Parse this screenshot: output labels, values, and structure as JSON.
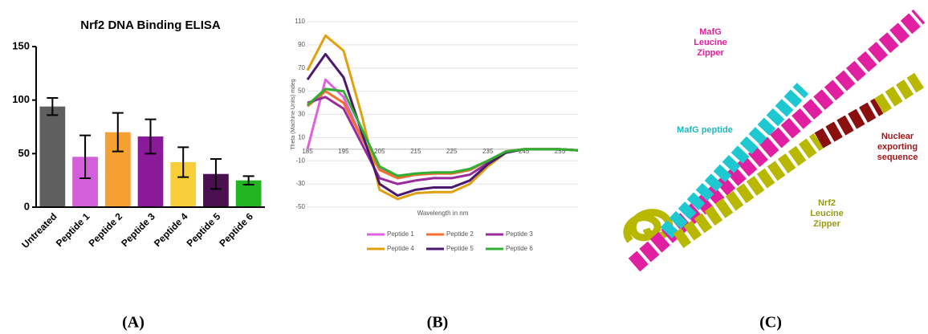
{
  "chart_data": [
    {
      "type": "bar",
      "title": "Nrf2 DNA Binding ELISA",
      "categories": [
        "Untreated",
        "Peptide 1",
        "Peptide 2",
        "Peptide 3",
        "Peptide 4",
        "Peptide 5",
        "Peptide 6"
      ],
      "values": [
        94,
        47,
        70,
        66,
        42,
        31,
        25
      ],
      "errors": [
        8,
        20,
        18,
        16,
        14,
        14,
        4
      ],
      "colors": [
        "#5f5f5f",
        "#d35fdb",
        "#f5a030",
        "#8b1a9a",
        "#f8cf3a",
        "#4a1050",
        "#22b522"
      ],
      "ylim": [
        0,
        150
      ],
      "yticks": [
        0,
        50,
        100,
        150
      ]
    },
    {
      "type": "line",
      "xlabel": "Wavelength in nm",
      "ylabel": "Theta (Machine Units) mdeg",
      "x": [
        185,
        190,
        195,
        200,
        205,
        210,
        215,
        220,
        225,
        230,
        235,
        240,
        245,
        250,
        255,
        260
      ],
      "series": [
        {
          "name": "Peptide 1",
          "color": "#e060e0",
          "values": [
            0,
            60,
            45,
            10,
            -17,
            -25,
            -22,
            -21,
            -21,
            -18,
            -10,
            -2,
            0,
            0,
            0,
            -1
          ]
        },
        {
          "name": "Peptide 2",
          "color": "#f07030",
          "values": [
            37,
            50,
            40,
            10,
            -18,
            -25,
            -22,
            -21,
            -21,
            -18,
            -10,
            -2,
            0,
            0,
            0,
            -1
          ]
        },
        {
          "name": "Peptide 3",
          "color": "#9b2a9b",
          "values": [
            40,
            45,
            35,
            5,
            -25,
            -30,
            -27,
            -25,
            -25,
            -22,
            -12,
            -3,
            0,
            0,
            0,
            -1
          ]
        },
        {
          "name": "Peptide 4",
          "color": "#e0a010",
          "values": [
            68,
            98,
            85,
            30,
            -35,
            -43,
            -38,
            -37,
            -37,
            -30,
            -15,
            -3,
            0,
            0,
            0,
            -1
          ]
        },
        {
          "name": "Peptide 5",
          "color": "#4b1a70",
          "values": [
            60,
            82,
            62,
            15,
            -30,
            -40,
            -35,
            -33,
            -33,
            -27,
            -13,
            -3,
            0,
            0,
            0,
            -1
          ]
        },
        {
          "name": "Peptide 6",
          "color": "#30b030",
          "values": [
            38,
            52,
            50,
            18,
            -15,
            -23,
            -21,
            -20,
            -20,
            -17,
            -10,
            -2,
            0,
            0,
            0,
            -1
          ]
        }
      ],
      "xlim": [
        185,
        260
      ],
      "xticks": [
        185,
        195,
        205,
        215,
        225,
        235,
        245,
        255
      ],
      "ylim": [
        -50,
        110
      ],
      "yticks": [
        -50,
        -30,
        -10,
        10,
        30,
        50,
        70,
        90,
        110
      ],
      "grid": true
    }
  ],
  "panels": [
    "(A)",
    "(B)",
    "(C)"
  ],
  "illustration": {
    "labels": [
      {
        "lines": [
          "MafG",
          "Leucine",
          "Zipper"
        ],
        "color": "#e0209a"
      },
      {
        "lines": [
          "MafG peptide"
        ],
        "color": "#1cb8c0"
      },
      {
        "lines": [
          "Nuclear",
          "exporting",
          "sequence"
        ],
        "color": "#a01818"
      },
      {
        "lines": [
          "Nrf2",
          "Leucine",
          "Zipper"
        ],
        "color": "#9a9a10"
      }
    ]
  }
}
